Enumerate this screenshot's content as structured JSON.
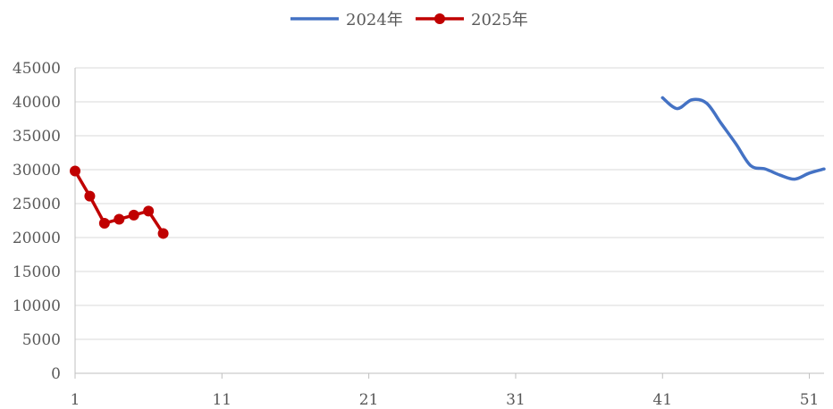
{
  "chart_data": {
    "type": "line",
    "title": "",
    "xlabel": "",
    "ylabel": "",
    "xlim": [
      1,
      52
    ],
    "ylim": [
      0,
      45000
    ],
    "x_ticks": [
      "1",
      "11",
      "21",
      "31",
      "41",
      "51"
    ],
    "y_ticks": [
      "0",
      "5000",
      "10000",
      "15000",
      "20000",
      "25000",
      "30000",
      "35000",
      "40000",
      "45000"
    ],
    "grid": "horizontal",
    "legend": "top-center",
    "series": [
      {
        "name": "2024年",
        "color": "#4472c4",
        "markers": false,
        "smooth": true,
        "x": [
          41,
          42,
          43,
          44,
          45,
          46,
          47,
          48,
          49,
          50,
          51,
          52
        ],
        "y": [
          40600,
          39000,
          40300,
          39800,
          36800,
          33800,
          30600,
          30100,
          29200,
          28600,
          29500,
          30100
        ]
      },
      {
        "name": "2025年",
        "color": "#c00000",
        "markers": true,
        "smooth": false,
        "x": [
          1,
          2,
          3,
          4,
          5,
          6,
          7
        ],
        "y": [
          29800,
          26100,
          22100,
          22700,
          23300,
          23900,
          20600
        ]
      }
    ]
  }
}
